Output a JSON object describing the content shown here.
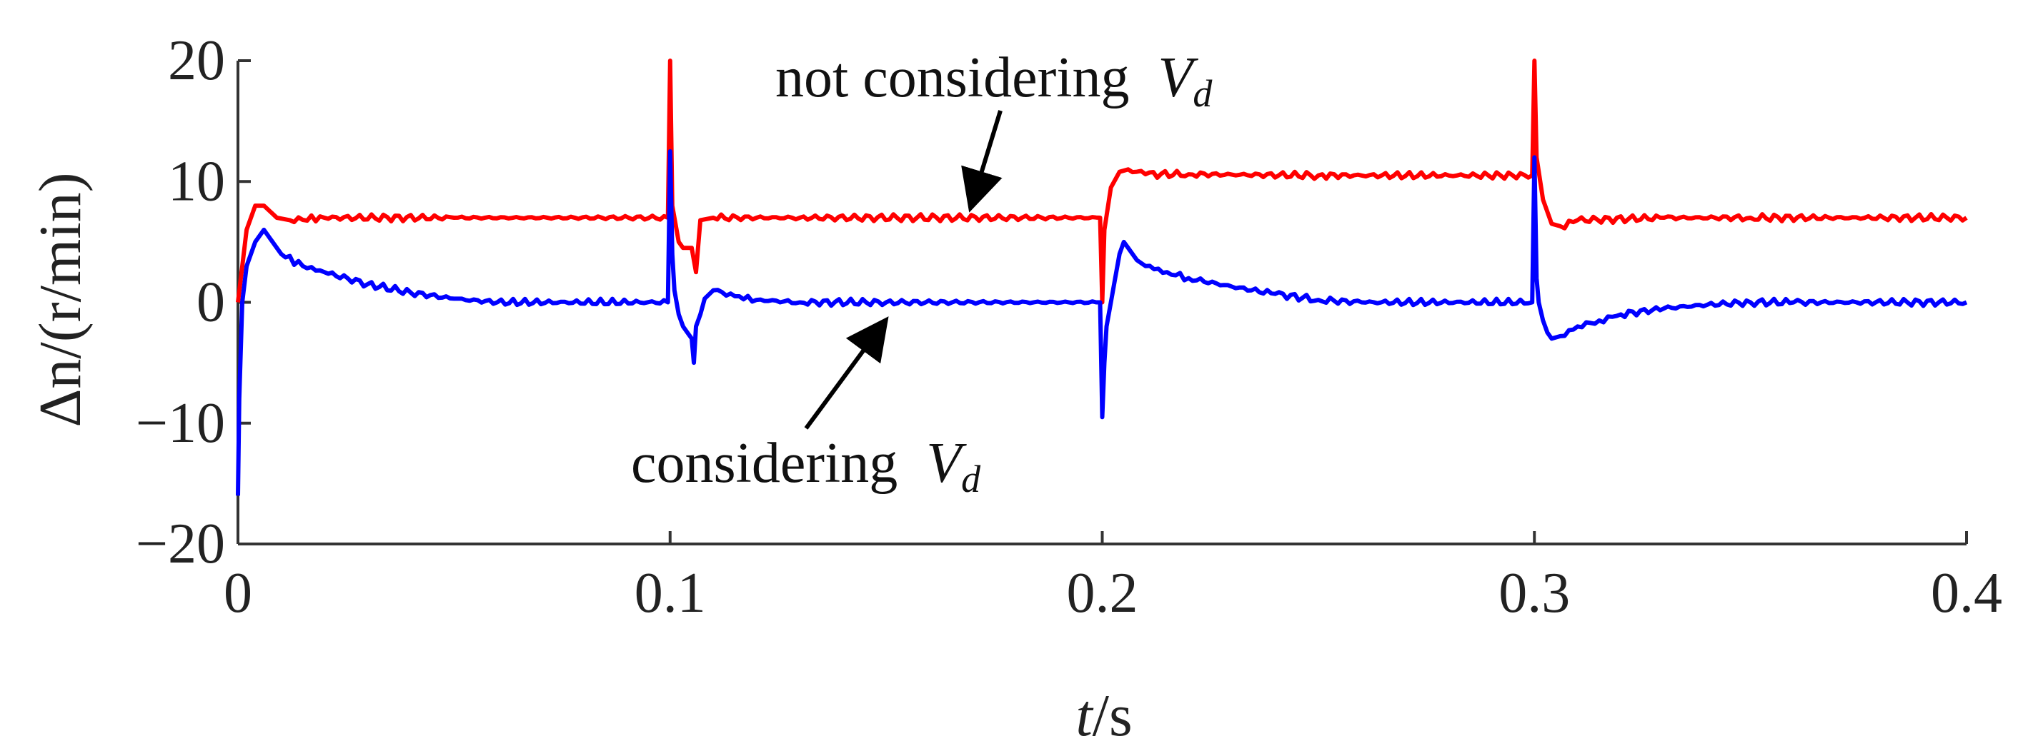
{
  "chart_data": {
    "type": "line",
    "xlabel": {
      "var": "t",
      "unit": "/s"
    },
    "ylabel": {
      "var": "Δn",
      "unit": "/(r/min)"
    },
    "xlim": [
      0,
      0.4
    ],
    "ylim": [
      -20,
      20
    ],
    "xticks": [
      "0",
      "0.1",
      "0.2",
      "0.3",
      "0.4"
    ],
    "yticks": [
      "20",
      "10",
      "0",
      "−10",
      "−20"
    ],
    "grid": false,
    "annotations": [
      {
        "text": "not considering",
        "var": "V",
        "sub": "d",
        "series": "red"
      },
      {
        "text": "considering",
        "var": "V",
        "sub": "d",
        "series": "blue"
      }
    ],
    "series": [
      {
        "color": "#ff0000",
        "x": [
          0,
          0.002,
          0.004,
          0.006,
          0.009,
          0.012,
          0.02,
          0.05,
          0.0995,
          0.1,
          0.1005,
          0.102,
          0.103,
          0.105,
          0.106,
          0.107,
          0.11,
          0.13,
          0.1995,
          0.2,
          0.2005,
          0.202,
          0.204,
          0.206,
          0.21,
          0.22,
          0.25,
          0.2995,
          0.3,
          0.3005,
          0.302,
          0.304,
          0.306,
          0.31,
          0.33,
          0.35,
          0.4
        ],
        "y": [
          0,
          6,
          8,
          8,
          7,
          6.8,
          7,
          7,
          7,
          20,
          8,
          5,
          4.5,
          4.5,
          2.5,
          6.8,
          7,
          7,
          7,
          0,
          6,
          9.5,
          10.8,
          11,
          10.6,
          10.6,
          10.5,
          10.5,
          20,
          12,
          8.5,
          6.5,
          6.3,
          6.8,
          7,
          7,
          7
        ]
      },
      {
        "color": "#0000ff",
        "x": [
          0,
          0.0003,
          0.001,
          0.002,
          0.004,
          0.006,
          0.008,
          0.01,
          0.015,
          0.02,
          0.03,
          0.04,
          0.05,
          0.06,
          0.0995,
          0.1,
          0.1005,
          0.101,
          0.102,
          0.103,
          0.104,
          0.105,
          0.1055,
          0.106,
          0.107,
          0.108,
          0.11,
          0.115,
          0.12,
          0.13,
          0.15,
          0.1995,
          0.2,
          0.2005,
          0.201,
          0.202,
          0.203,
          0.204,
          0.205,
          0.206,
          0.208,
          0.21,
          0.215,
          0.22,
          0.23,
          0.24,
          0.25,
          0.26,
          0.2995,
          0.3,
          0.3005,
          0.301,
          0.302,
          0.303,
          0.304,
          0.306,
          0.31,
          0.315,
          0.32,
          0.33,
          0.34,
          0.35,
          0.36,
          0.4
        ],
        "y": [
          -16,
          -8,
          0,
          3,
          5,
          6,
          5,
          4,
          3,
          2.5,
          1.5,
          0.8,
          0.3,
          0,
          0,
          12.5,
          4,
          1,
          -1,
          -2,
          -2.5,
          -3,
          -5,
          -2,
          -1,
          0.3,
          1,
          0.5,
          0.2,
          0,
          0,
          0,
          -9.5,
          -5,
          -2,
          0,
          2,
          4,
          5,
          4.5,
          3.5,
          3,
          2.5,
          2,
          1.3,
          0.7,
          0.2,
          0,
          0,
          12,
          2,
          0,
          -1.5,
          -2.5,
          -3,
          -2.8,
          -2,
          -1.5,
          -1,
          -0.5,
          -0.2,
          0,
          0,
          0
        ]
      }
    ]
  }
}
